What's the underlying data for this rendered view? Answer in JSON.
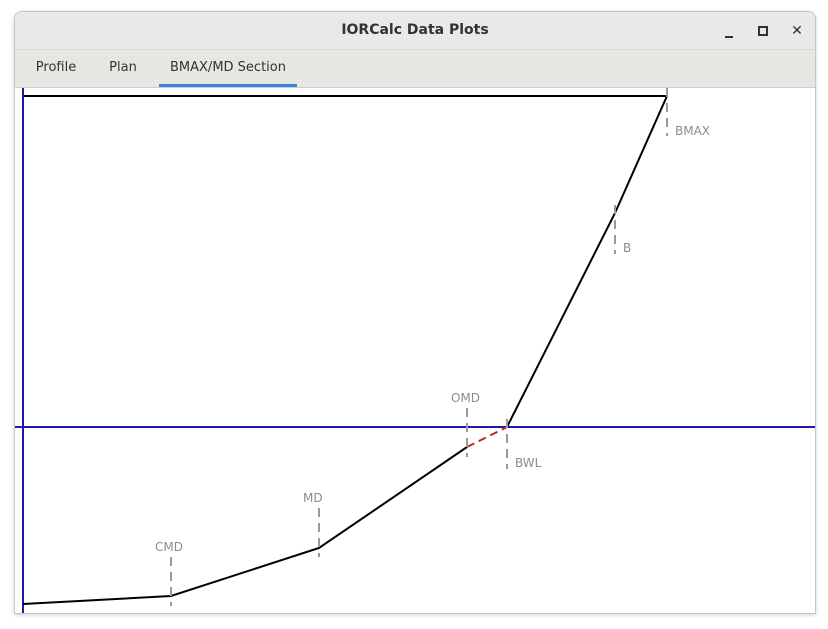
{
  "window": {
    "title": "IORCalc Data Plots",
    "controls": {
      "minimize": "minimize-icon",
      "maximize": "maximize-icon",
      "close": "close-icon"
    }
  },
  "tabs": [
    {
      "label": "Profile",
      "active": false
    },
    {
      "label": "Plan",
      "active": false
    },
    {
      "label": "BMAX/MD Section",
      "active": true
    }
  ],
  "plot": {
    "colors": {
      "axis": "#1a1aa6",
      "profile": "#000000",
      "waterline_segment": "#c0272d",
      "marker": "#9a9a9a"
    },
    "labels": {
      "bmax": "BMAX",
      "b": "B",
      "omd": "OMD",
      "bwl": "BWL",
      "md": "MD",
      "cmd": "CMD"
    }
  }
}
